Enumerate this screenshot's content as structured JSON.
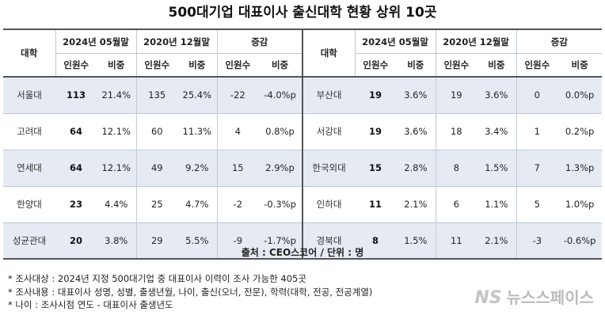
{
  "title": "500대기업 대표이사 출신대학 현황 상위 10곳",
  "header": {
    "univ": "대학",
    "g2024": "2024년 05월말",
    "g2020": "2020년 12월말",
    "gdiff": "증감",
    "count": "인원수",
    "ratio": "비중"
  },
  "rows_left": [
    {
      "name": "서울대",
      "c24": "113",
      "r24": "21.4%",
      "c20": "135",
      "r20": "25.4%",
      "dc": "-22",
      "dr": "-4.0%p"
    },
    {
      "name": "고려대",
      "c24": "64",
      "r24": "12.1%",
      "c20": "60",
      "r20": "11.3%",
      "dc": "4",
      "dr": "0.8%p"
    },
    {
      "name": "연세대",
      "c24": "64",
      "r24": "12.1%",
      "c20": "49",
      "r20": "9.2%",
      "dc": "15",
      "dr": "2.9%p"
    },
    {
      "name": "한양대",
      "c24": "23",
      "r24": "4.4%",
      "c20": "25",
      "r20": "4.7%",
      "dc": "-2",
      "dr": "-0.3%p"
    },
    {
      "name": "성균관대",
      "c24": "20",
      "r24": "3.8%",
      "c20": "29",
      "r20": "5.5%",
      "dc": "-9",
      "dr": "-1.7%p"
    }
  ],
  "rows_right": [
    {
      "name": "부산대",
      "c24": "19",
      "r24": "3.6%",
      "c20": "19",
      "r20": "3.6%",
      "dc": "0",
      "dr": "0.0%p"
    },
    {
      "name": "서강대",
      "c24": "19",
      "r24": "3.6%",
      "c20": "18",
      "r20": "3.4%",
      "dc": "1",
      "dr": "0.2%p"
    },
    {
      "name": "한국외대",
      "c24": "15",
      "r24": "2.8%",
      "c20": "8",
      "r20": "1.5%",
      "dc": "7",
      "dr": "1.3%p"
    },
    {
      "name": "인하대",
      "c24": "11",
      "r24": "2.1%",
      "c20": "6",
      "r20": "1.1%",
      "dc": "5",
      "dr": "1.0%p"
    },
    {
      "name": "경북대",
      "c24": "8",
      "r24": "1.5%",
      "c20": "11",
      "r20": "2.1%",
      "dc": "-3",
      "dr": "-0.6%p"
    }
  ],
  "source": "출처 : CEO스코어 / 단위 : 명",
  "notes": [
    "* 조사대상 : 2024년 지정 500대기업 중 대표이사 이력이 조사 가능한 405곳",
    "* 조사내용 : 대표이사 성명, 성별, 출생년월, 나이, 출신(오너, 전문), 학력(대학, 전공, 전공계열)",
    "* 나이 : 조사시점 연도 - 대표이사 출생년도"
  ],
  "logo": {
    "mark": "NS",
    "text": "뉴스스페이스"
  }
}
